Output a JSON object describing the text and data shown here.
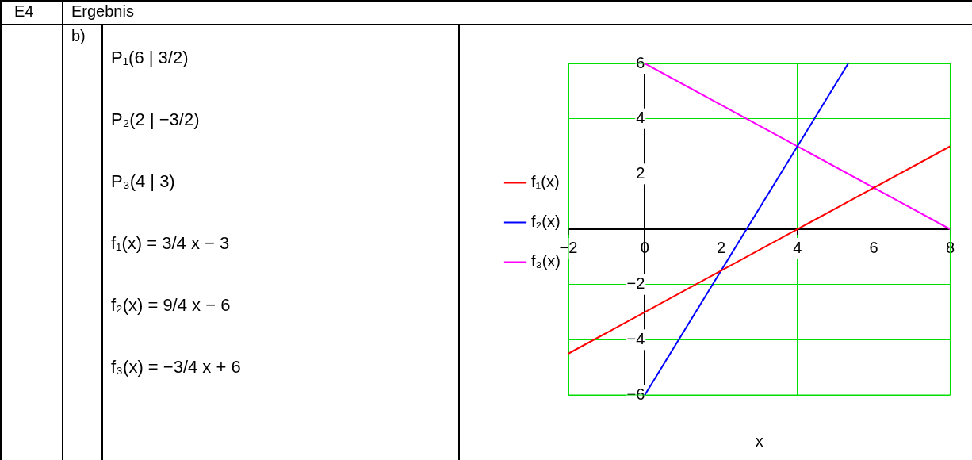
{
  "chart_data": {
    "type": "line",
    "title": "Ergebnis",
    "annotations": [
      "E4",
      "b)",
      "P₁(6 | 3/2)",
      "P₂(2 | −3/2)",
      "P₃(4 | 3)",
      "f₁(x) = 3/4 x − 3",
      "f₂(x) = 9/4 x − 6",
      "f₃(x) = −3/4 x + 6"
    ],
    "xlabel": "x",
    "series": [
      {
        "name": "f₁(x)",
        "color": "#ff0000",
        "x": [
          -2,
          8
        ],
        "values": [
          -4.5,
          3
        ]
      },
      {
        "name": "f₂(x)",
        "color": "#0000ff",
        "x": [
          0,
          5.33
        ],
        "values": [
          -6,
          6
        ]
      },
      {
        "name": "f₃(x)",
        "color": "#ff00ff",
        "x": [
          0,
          8
        ],
        "values": [
          6,
          0
        ]
      }
    ],
    "xlim": [
      -2,
      8
    ],
    "ylim": [
      -6,
      6
    ],
    "xticks": [
      -2,
      0,
      2,
      4,
      6,
      8
    ],
    "yticks": [
      -6,
      -4,
      -2,
      2,
      4,
      6
    ],
    "grid": true,
    "legend": "left",
    "marker": "none",
    "line_style": "solid"
  }
}
